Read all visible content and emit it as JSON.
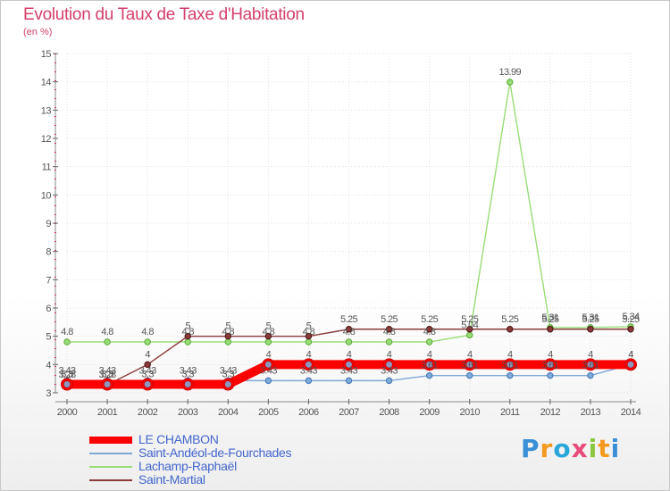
{
  "title": "Evolution du Taux de Taxe d'Habitation",
  "unit": "(en %)",
  "logo_text": "Proxiti",
  "chart_data": {
    "type": "line",
    "title": "Evolution du Taux de Taxe d'Habitation",
    "ylabel": "(en %)",
    "xlabel": "",
    "x": [
      2000,
      2001,
      2002,
      2003,
      2004,
      2005,
      2006,
      2007,
      2008,
      2009,
      2010,
      2011,
      2012,
      2013,
      2014
    ],
    "ylim": [
      3,
      15
    ],
    "yticks": [
      3,
      4,
      5,
      6,
      7,
      8,
      9,
      10,
      11,
      12,
      13,
      14,
      15
    ],
    "ytick_labels": [
      "3",
      "4",
      "5",
      "6",
      "7",
      "8",
      "9",
      "10",
      "11",
      "12",
      "13",
      "14",
      "15"
    ],
    "legend_position": "bottom-left",
    "series": [
      {
        "name": "LE CHAMBON",
        "color": "#ff0000",
        "values": [
          3.3,
          3.3,
          3.3,
          3.3,
          3.3,
          4,
          4,
          4,
          4,
          4,
          4,
          4,
          4,
          4,
          4
        ],
        "labels": [
          "3.3",
          "3.3",
          "3.3",
          "3.3",
          "3.3",
          "4",
          "4",
          "4",
          "4",
          "4",
          "4",
          "4",
          "4",
          "4",
          "4"
        ]
      },
      {
        "name": "Saint-Andéol-de-Fourchades",
        "color": "#7fa9d6",
        "values": [
          3.43,
          3.43,
          3.43,
          3.43,
          3.43,
          3.43,
          3.43,
          3.43,
          3.43,
          3.61,
          3.61,
          3.61,
          3.61,
          3.61,
          4
        ],
        "labels": [
          "3.43",
          "3.43",
          "3.43",
          "3.43",
          "3.43",
          "3.43",
          "3.43",
          "3.43",
          "3.43",
          "3.61",
          "3.61",
          "3.61",
          "3.61",
          "3.61",
          "4"
        ]
      },
      {
        "name": "Lachamp-Raphaël",
        "color": "#99dd77",
        "values": [
          4.8,
          4.8,
          4.8,
          4.8,
          4.8,
          4.8,
          4.8,
          4.8,
          4.8,
          4.8,
          5.04,
          13.99,
          5.31,
          5.31,
          5.34
        ],
        "labels": [
          "4.8",
          "4.8",
          "4.8",
          "4.8",
          "4.8",
          "4.8",
          "4.8",
          "4.8",
          "4.8",
          "4.8",
          "5.04",
          "13.99",
          "5.31",
          "5.31",
          "5.34"
        ]
      },
      {
        "name": "Saint-Martial",
        "color": "#8b3a3a",
        "values": [
          3.28,
          3.28,
          4,
          5,
          5,
          5,
          5,
          5.25,
          5.25,
          5.25,
          5.25,
          5.25,
          5.25,
          5.25,
          5.25
        ],
        "labels": [
          "3.28",
          "3.28",
          "4",
          "5",
          "5",
          "5",
          "5",
          "5.25",
          "5.25",
          "5.25",
          "5.25",
          "5.25",
          "5.25",
          "5.25",
          "5.25"
        ]
      }
    ]
  }
}
